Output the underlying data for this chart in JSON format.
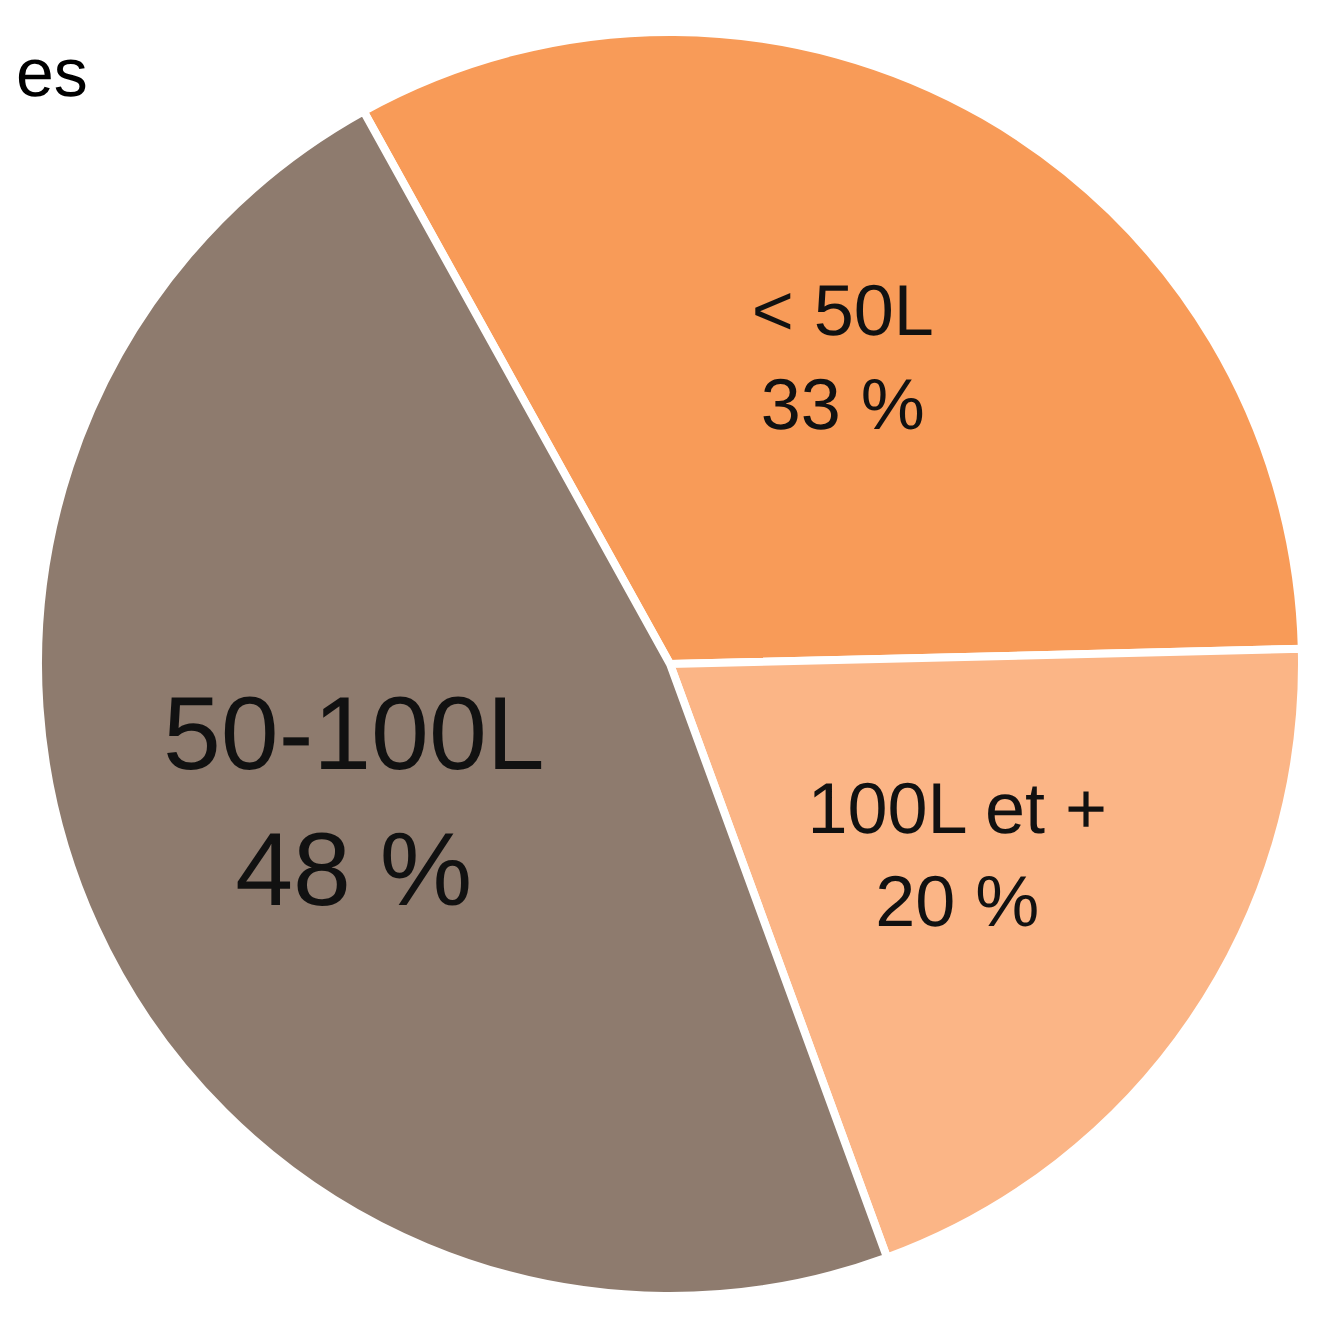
{
  "chart_data": {
    "type": "pie",
    "categories": [
      "< 50L",
      "100L et +",
      "50-100L"
    ],
    "values": [
      33,
      20,
      48
    ],
    "colors": [
      "#f89b58",
      "#fbb586",
      "#8e7b6e"
    ],
    "value_labels": [
      "33 %",
      "20 %",
      "48 %"
    ],
    "annotations": [
      "es"
    ],
    "legend": false
  }
}
